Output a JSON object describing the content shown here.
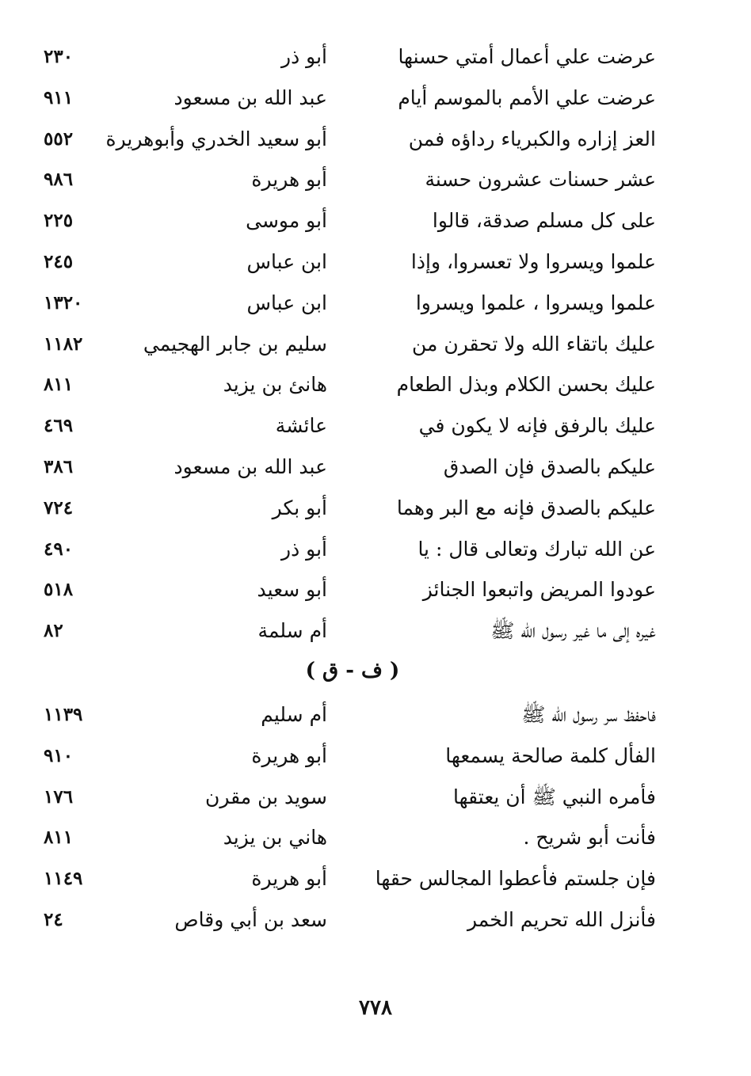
{
  "section1": [
    {
      "text": "عرضت علي أعمال أمتي حسنها",
      "narrator": "أبو ذر",
      "number": "٢٣٠"
    },
    {
      "text": "عرضت علي الأمم بالموسم أيام",
      "narrator": "عبد الله بن مسعود",
      "number": "٩١١"
    },
    {
      "text": "العز إزاره والكبرياء رداؤه فمن",
      "narrator": "أبو سعيد الخدري وأبوهريرة",
      "number": "٥٥٢"
    },
    {
      "text": "عشر حسنات عشرون حسنة",
      "narrator": "أبو هريرة",
      "number": "٩٨٦"
    },
    {
      "text": "على كل مسلم صدقة، قالوا",
      "narrator": "أبو موسى",
      "number": "٢٢٥"
    },
    {
      "text": "علموا ويسروا ولا تعسروا، وإذا",
      "narrator": "ابن عباس",
      "number": "٢٤٥"
    },
    {
      "text": "علموا ويسروا ، علموا ويسروا",
      "narrator": "ابن عباس",
      "number": "١٣٢٠"
    },
    {
      "text": "عليك باتقاء الله ولا تحقرن من",
      "narrator": "سليم بن جابر الهجيمي",
      "number": "١١٨٢"
    },
    {
      "text": "عليك بحسن الكلام وبذل الطعام",
      "narrator": "هانئ بن يزيد",
      "number": "٨١١"
    },
    {
      "text": "عليك بالرفق فإنه لا يكون في",
      "narrator": "عائشة",
      "number": "٤٦٩"
    },
    {
      "text": "عليكم بالصدق فإن الصدق",
      "narrator": "عبد الله بن مسعود",
      "number": "٣٨٦"
    },
    {
      "text": "عليكم بالصدق فإنه مع البر وهما",
      "narrator": "أبو بكر",
      "number": "٧٢٤"
    },
    {
      "text": "عن الله تبارك وتعالى قال : يا",
      "narrator": "أبو ذر",
      "number": "٤٩٠"
    },
    {
      "text": "عودوا المريض واتبعوا الجنائز",
      "narrator": "أبو سعيد",
      "number": "٥١٨"
    },
    {
      "text": "غيره إلى ما غير رسول الله ﷺ",
      "narrator": "أم سلمة",
      "number": "٨٢"
    }
  ],
  "heading": "( ف - ق )",
  "section2": [
    {
      "text": "فاحفظ سر رسول الله ﷺ",
      "narrator": "أم سليم",
      "number": "١١٣٩"
    },
    {
      "text": "الفأل كلمة صالحة يسمعها",
      "narrator": "أبو هريرة",
      "number": "٩١٠"
    },
    {
      "text": "فأمره النبي ﷺ أن يعتقها",
      "narrator": "سويد بن مقرن",
      "number": "١٧٦"
    },
    {
      "text": "فأنت أبو شريح .",
      "narrator": "هاني بن يزيد",
      "number": "٨١١"
    },
    {
      "text": "فإن جلستم فأعطوا المجالس حقها",
      "narrator": "أبو هريرة",
      "number": "١١٤٩"
    },
    {
      "text": "فأنزل الله تحريم الخمر",
      "narrator": "سعد بن أبي وقاص",
      "number": "٢٤"
    }
  ],
  "page_number": "٧٧٨"
}
